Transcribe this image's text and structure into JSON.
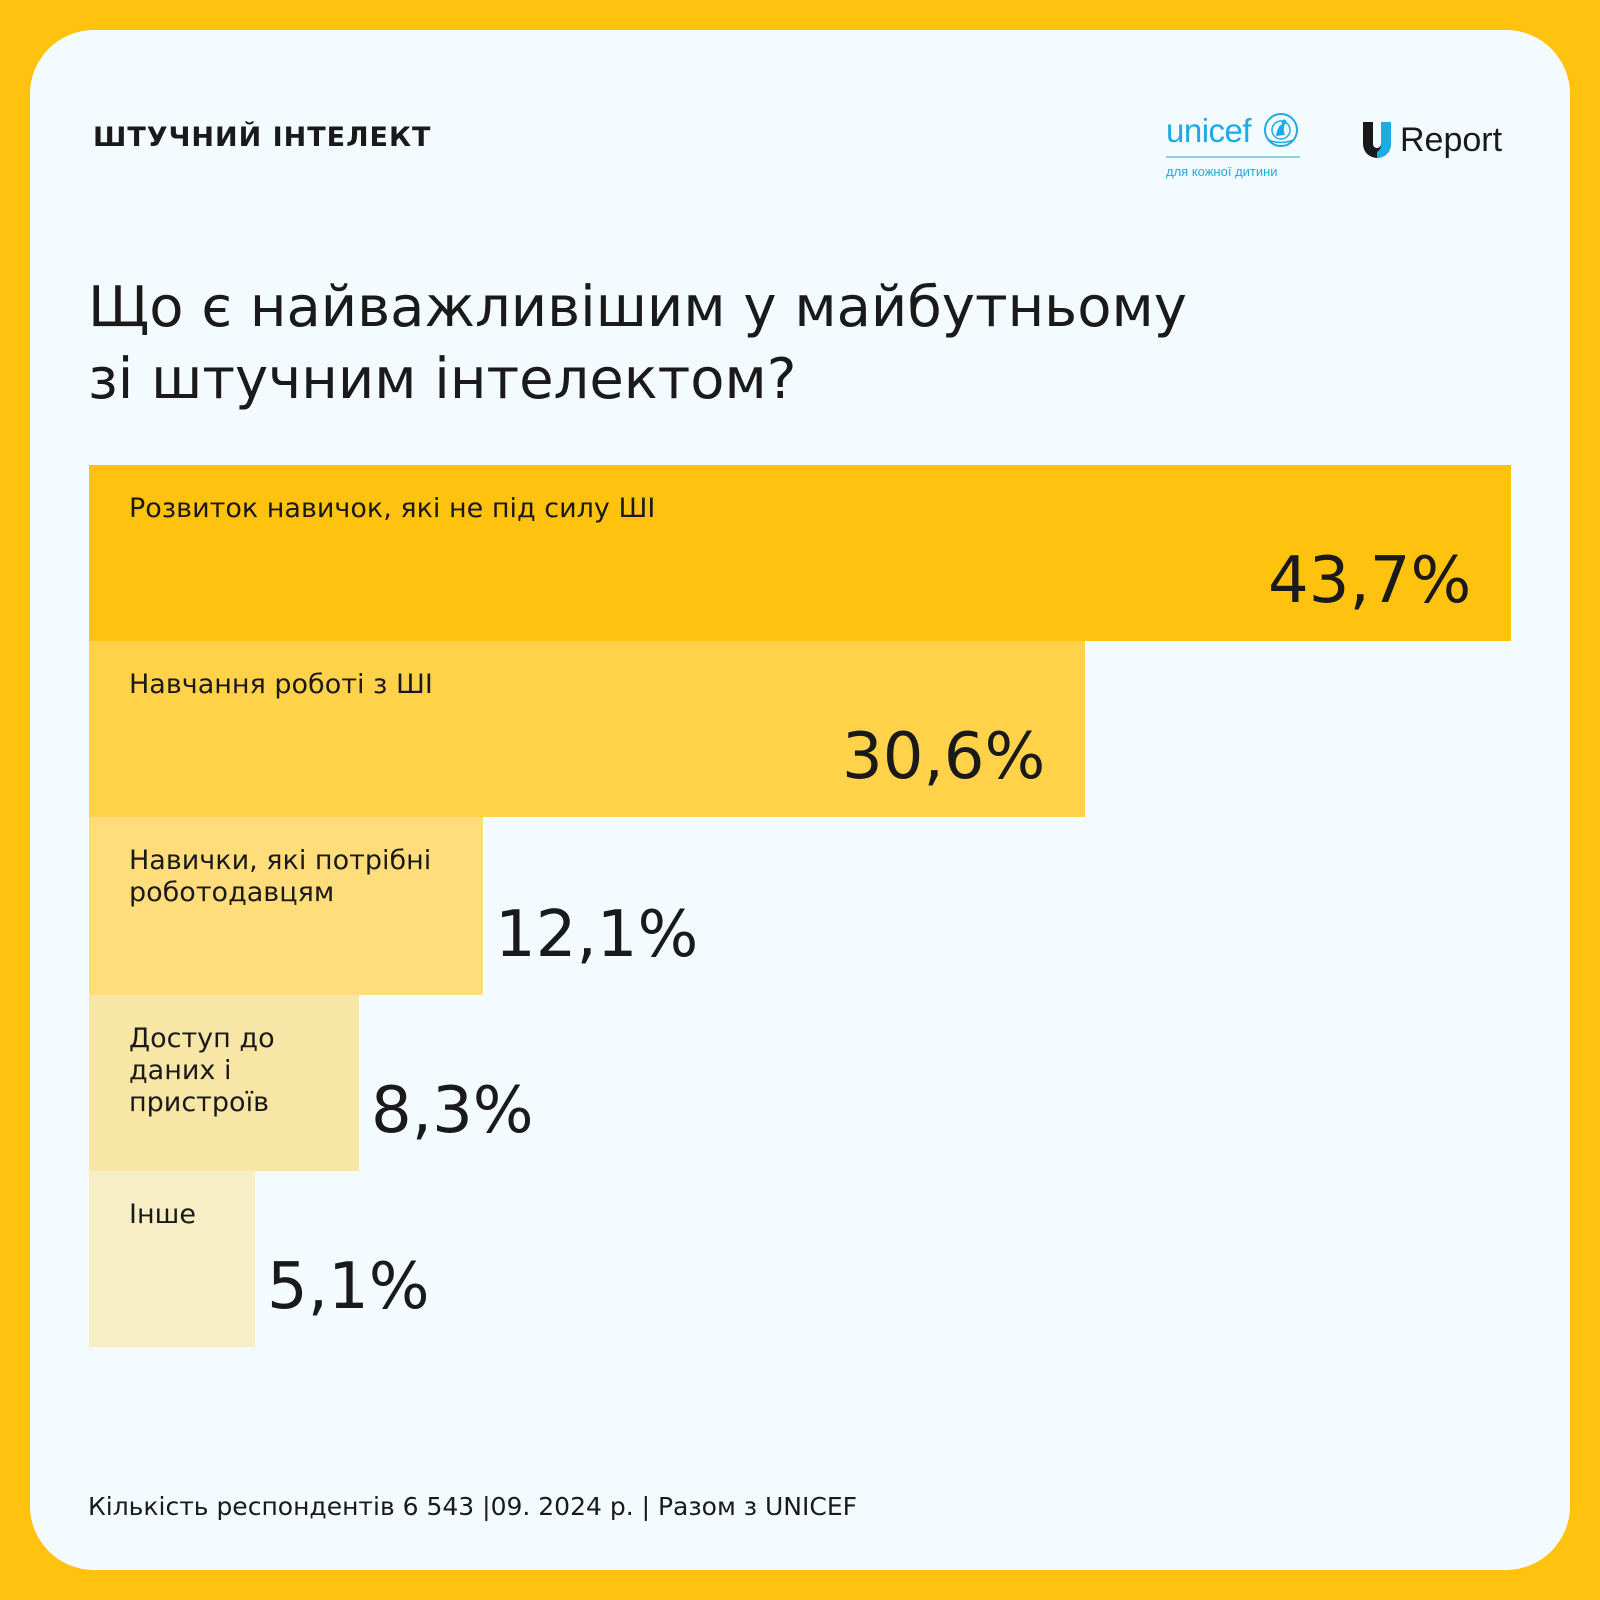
{
  "header": {
    "topic": "ШТУЧНИЙ ІНТЕЛЕКТ",
    "unicef_logo": {
      "word": "unicef",
      "tagline": "для кожної дитини",
      "color": "#1CABE2"
    },
    "ureport_logo": {
      "word": "Report",
      "color": "#1CABE2"
    }
  },
  "title_lines": [
    "Що є найважливішим у майбутньому",
    "зі штучним інтелектом?"
  ],
  "chart_data": {
    "type": "bar",
    "orientation": "horizontal",
    "categories": [
      "Розвиток навичок, які не під силу ШІ",
      "Навчання роботі з ШІ",
      "Навички, які потрібні роботодавцям",
      "Доступ до даних і пристроїв",
      "Інше"
    ],
    "values": [
      43.7,
      30.6,
      12.1,
      8.3,
      5.1
    ],
    "value_labels": [
      "43,7%",
      "30,6%",
      "12,1%",
      "8,3%",
      "5,1%"
    ],
    "colors": [
      "#FFC20E",
      "#FFD24A",
      "#FFDD7A",
      "#F8E6A6",
      "#F8EEC6"
    ],
    "xlim": [
      0,
      43.7
    ]
  },
  "footer": {
    "text": "Кількість респондентів 6 543 |09. 2024 р. | Разом з UNICEF"
  }
}
